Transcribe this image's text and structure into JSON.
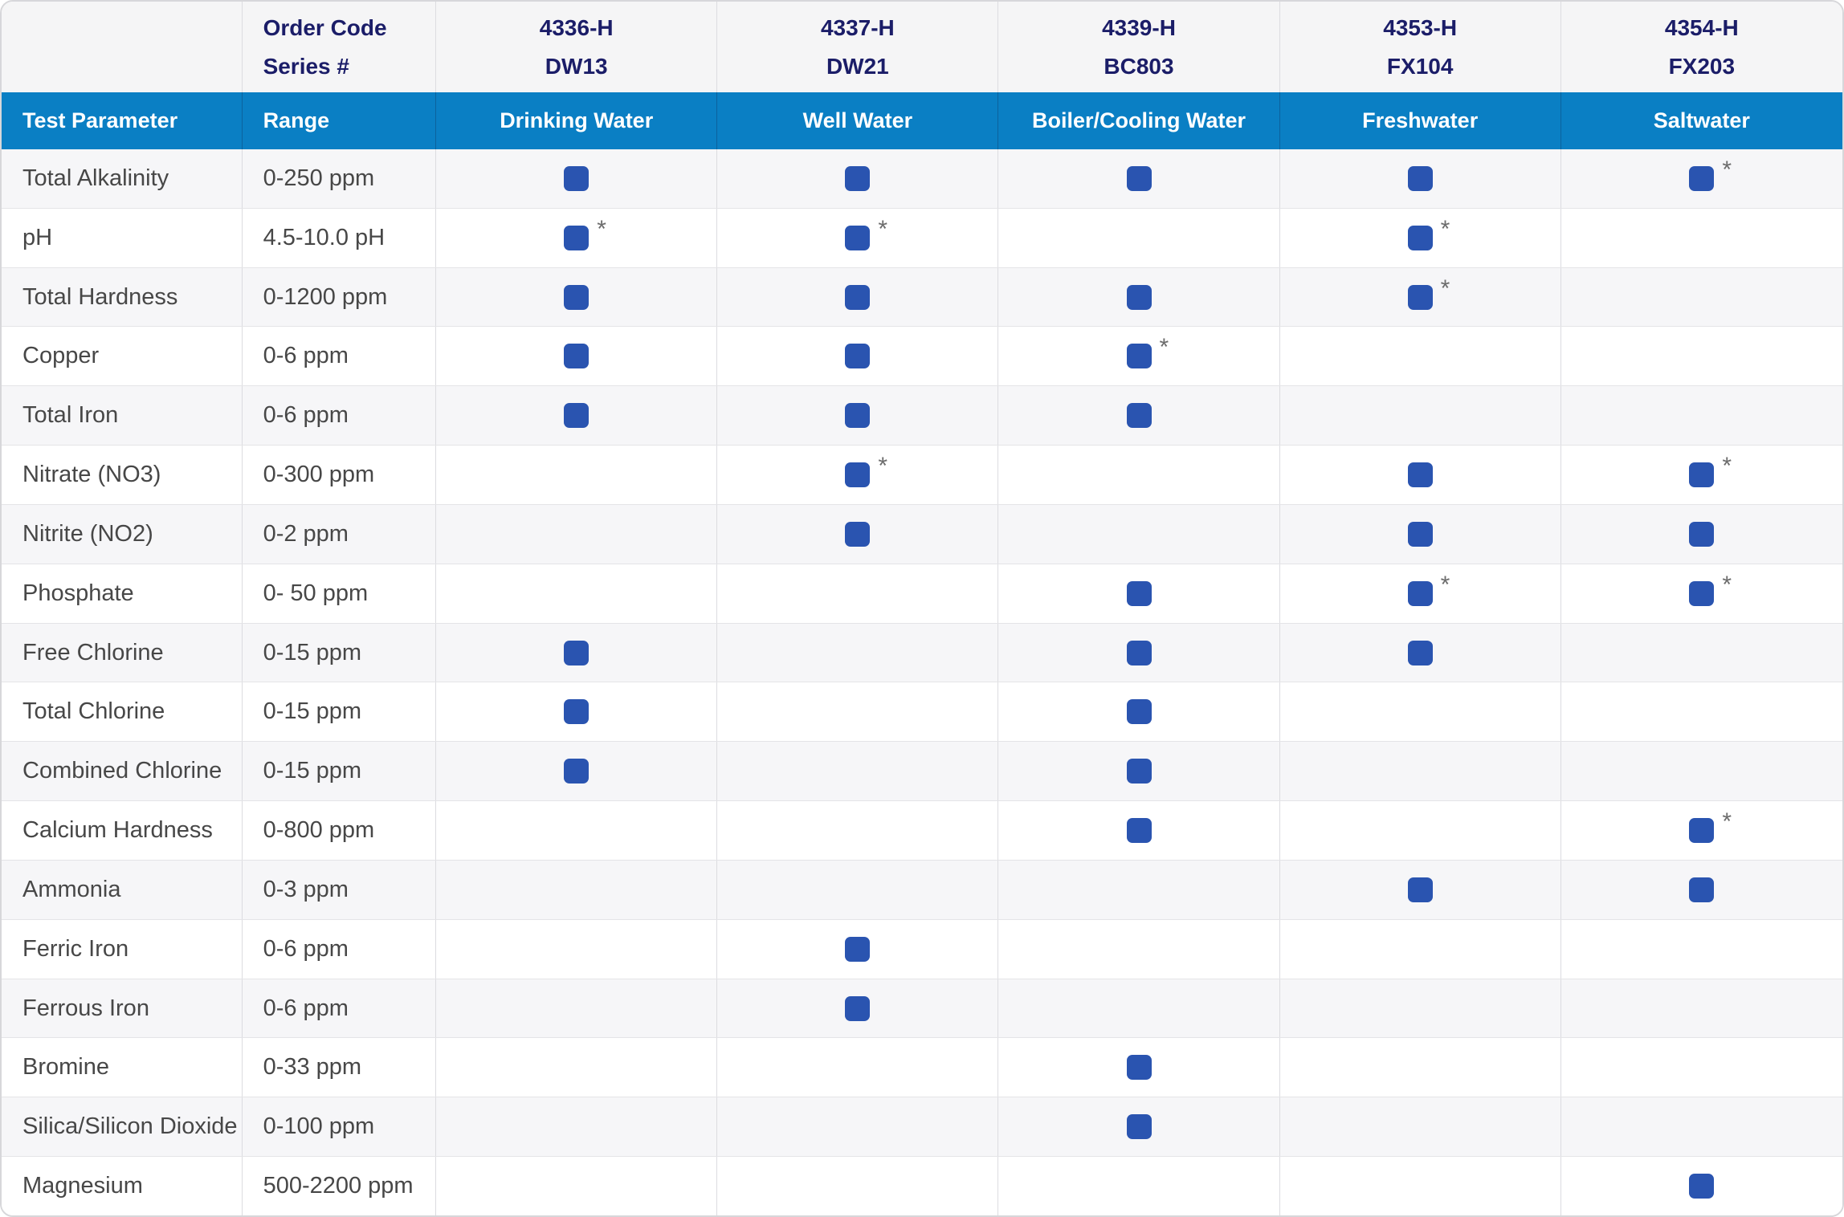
{
  "header": {
    "order_code_label": "Order Code",
    "series_label": "Series #",
    "test_parameter_label": "Test Parameter",
    "range_label": "Range",
    "kits": [
      {
        "order_code": "4336-H",
        "series": "DW13",
        "water_type": "Drinking Water"
      },
      {
        "order_code": "4337-H",
        "series": "DW21",
        "water_type": "Well Water"
      },
      {
        "order_code": "4339-H",
        "series": "BC803",
        "water_type": "Boiler/Cooling Water"
      },
      {
        "order_code": "4353-H",
        "series": "FX104",
        "water_type": "Freshwater"
      },
      {
        "order_code": "4354-H",
        "series": "FX203",
        "water_type": "Saltwater"
      }
    ]
  },
  "rows": [
    {
      "parameter": "Total Alkalinity",
      "range": "0-250 ppm",
      "kits": [
        "check",
        "check",
        "check",
        "check",
        "check*"
      ]
    },
    {
      "parameter": "pH",
      "range": "4.5-10.0 pH",
      "kits": [
        "check*",
        "check*",
        "",
        "check*",
        ""
      ]
    },
    {
      "parameter": "Total Hardness",
      "range": "0-1200 ppm",
      "kits": [
        "check",
        "check",
        "check",
        "check*",
        ""
      ]
    },
    {
      "parameter": "Copper",
      "range": "0-6 ppm",
      "kits": [
        "check",
        "check",
        "check*",
        "",
        ""
      ]
    },
    {
      "parameter": "Total Iron",
      "range": "0-6 ppm",
      "kits": [
        "check",
        "check",
        "check",
        "",
        ""
      ]
    },
    {
      "parameter": "Nitrate (NO3)",
      "range": "0-300 ppm",
      "kits": [
        "",
        "check*",
        "",
        "check",
        "check*"
      ]
    },
    {
      "parameter": "Nitrite (NO2)",
      "range": "0-2 ppm",
      "kits": [
        "",
        "check",
        "",
        "check",
        "check"
      ]
    },
    {
      "parameter": "Phosphate",
      "range": "0- 50 ppm",
      "kits": [
        "",
        "",
        "check",
        "check*",
        "check*"
      ]
    },
    {
      "parameter": "Free Chlorine",
      "range": "0-15 ppm",
      "kits": [
        "check",
        "",
        "check",
        "check",
        ""
      ]
    },
    {
      "parameter": "Total Chlorine",
      "range": "0-15 ppm",
      "kits": [
        "check",
        "",
        "check",
        "",
        ""
      ]
    },
    {
      "parameter": "Combined Chlorine",
      "range": "0-15 ppm",
      "kits": [
        "check",
        "",
        "check",
        "",
        ""
      ]
    },
    {
      "parameter": "Calcium Hardness",
      "range": "0-800 ppm",
      "kits": [
        "",
        "",
        "check",
        "",
        "check*"
      ]
    },
    {
      "parameter": "Ammonia",
      "range": "0-3 ppm",
      "kits": [
        "",
        "",
        "",
        "check",
        "check"
      ]
    },
    {
      "parameter": "Ferric Iron",
      "range": "0-6 ppm",
      "kits": [
        "",
        "check",
        "",
        "",
        ""
      ]
    },
    {
      "parameter": "Ferrous Iron",
      "range": "0-6 ppm",
      "kits": [
        "",
        "check",
        "",
        "",
        ""
      ]
    },
    {
      "parameter": "Bromine",
      "range": "0-33 ppm",
      "kits": [
        "",
        "",
        "check",
        "",
        ""
      ]
    },
    {
      "parameter": "Silica/Silicon Dioxide",
      "range": "0-100 ppm",
      "kits": [
        "",
        "",
        "check",
        "",
        ""
      ]
    },
    {
      "parameter": "Magnesium",
      "range": "500-2200 ppm",
      "kits": [
        "",
        "",
        "",
        "",
        "check"
      ]
    }
  ],
  "icons": {
    "check_mark": "blue-rounded-square",
    "footnote_marker": "*"
  },
  "colors": {
    "header_blue": "#0a7fc4",
    "check_blue": "#2a54b0",
    "navy_text": "#1b1d68",
    "body_text": "#474747",
    "stripe_gray": "#f6f6f8",
    "top_header_gray": "#f5f5f6",
    "asterisk_gray": "#6c6c6c"
  },
  "chart_data": {
    "type": "table",
    "title": "Water test kit parameter comparison",
    "columns": [
      "Test Parameter",
      "Range",
      "4336-H DW13 Drinking Water",
      "4337-H DW21 Well Water",
      "4339-H BC803 Boiler/Cooling Water",
      "4353-H FX104 Freshwater",
      "4354-H FX203 Saltwater"
    ],
    "rows": [
      [
        "Total Alkalinity",
        "0-250 ppm",
        "✓",
        "✓",
        "✓",
        "✓",
        "✓*"
      ],
      [
        "pH",
        "4.5-10.0 pH",
        "✓*",
        "✓*",
        "",
        "✓*",
        ""
      ],
      [
        "Total Hardness",
        "0-1200 ppm",
        "✓",
        "✓",
        "✓",
        "✓*",
        ""
      ],
      [
        "Copper",
        "0-6 ppm",
        "✓",
        "✓",
        "✓*",
        "",
        ""
      ],
      [
        "Total Iron",
        "0-6 ppm",
        "✓",
        "✓",
        "✓",
        "",
        ""
      ],
      [
        "Nitrate (NO3)",
        "0-300 ppm",
        "",
        "✓*",
        "",
        "✓",
        "✓*"
      ],
      [
        "Nitrite (NO2)",
        "0-2 ppm",
        "",
        "✓",
        "",
        "✓",
        "✓"
      ],
      [
        "Phosphate",
        "0- 50 ppm",
        "",
        "",
        "✓",
        "✓*",
        "✓*"
      ],
      [
        "Free Chlorine",
        "0-15 ppm",
        "✓",
        "",
        "✓",
        "✓",
        ""
      ],
      [
        "Total Chlorine",
        "0-15 ppm",
        "✓",
        "",
        "✓",
        "",
        ""
      ],
      [
        "Combined Chlorine",
        "0-15 ppm",
        "✓",
        "",
        "✓",
        "",
        ""
      ],
      [
        "Calcium Hardness",
        "0-800 ppm",
        "",
        "",
        "✓",
        "",
        "✓*"
      ],
      [
        "Ammonia",
        "0-3 ppm",
        "",
        "",
        "",
        "✓",
        "✓"
      ],
      [
        "Ferric Iron",
        "0-6 ppm",
        "",
        "✓",
        "",
        "",
        ""
      ],
      [
        "Ferrous Iron",
        "0-6 ppm",
        "",
        "✓",
        "",
        "",
        ""
      ],
      [
        "Bromine",
        "0-33 ppm",
        "",
        "",
        "✓",
        "",
        ""
      ],
      [
        "Silica/Silicon Dioxide",
        "0-100 ppm",
        "",
        "",
        "✓",
        "",
        ""
      ],
      [
        "Magnesium",
        "500-2200 ppm",
        "",
        "",
        "",
        "",
        "✓"
      ]
    ]
  }
}
